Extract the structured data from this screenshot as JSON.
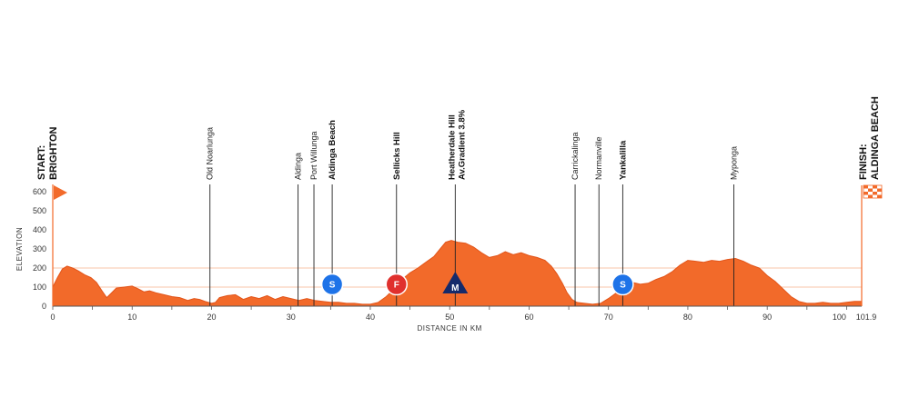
{
  "chart_data": {
    "type": "area",
    "title": "",
    "xlabel": "DISTANCE IN KM",
    "ylabel": "ELEVATION",
    "xlim": [
      0,
      101.9
    ],
    "ylim": [
      0,
      600
    ],
    "x_ticks": [
      "0",
      "10",
      "20",
      "30",
      "40",
      "50",
      "60",
      "70",
      "80",
      "90",
      "100",
      "101.9"
    ],
    "y_ticks": [
      "0",
      "100",
      "200",
      "300",
      "400",
      "500",
      "600"
    ],
    "fill_color": "#f26a2a",
    "line_color": "#e2551a",
    "profile": {
      "x": [
        0,
        0.6,
        1.2,
        1.8,
        2.5,
        3.2,
        4,
        4.8,
        5.5,
        6.2,
        6.8,
        7.4,
        8,
        9,
        10,
        10.8,
        11.5,
        12.2,
        13,
        14,
        15,
        16,
        17,
        17.8,
        18.5,
        19.2,
        20,
        20.5,
        21,
        22,
        23,
        24,
        25,
        26,
        27,
        28,
        29,
        30,
        31,
        32,
        33,
        34,
        35,
        36,
        37,
        38,
        39,
        40,
        41,
        42,
        43,
        44,
        45,
        46,
        47,
        48,
        48.8,
        49.5,
        50.2,
        51,
        52,
        53,
        54,
        55,
        56,
        57,
        58,
        59,
        60,
        61,
        62,
        62.8,
        63.5,
        64.2,
        64.8,
        65.4,
        66,
        67,
        68,
        69,
        70,
        71,
        72,
        73,
        74,
        75,
        76,
        77,
        78,
        79,
        80,
        81,
        82,
        83,
        84,
        85,
        86,
        87,
        88,
        89,
        90,
        91,
        92,
        93,
        94,
        95,
        96,
        97,
        98,
        99,
        100,
        101,
        101.9
      ],
      "y": [
        100,
        150,
        195,
        210,
        200,
        185,
        165,
        150,
        125,
        80,
        45,
        70,
        95,
        100,
        105,
        90,
        75,
        80,
        70,
        60,
        50,
        45,
        30,
        40,
        35,
        25,
        15,
        20,
        45,
        55,
        60,
        35,
        50,
        40,
        55,
        35,
        50,
        40,
        30,
        40,
        30,
        25,
        20,
        20,
        15,
        15,
        10,
        10,
        20,
        50,
        90,
        140,
        175,
        200,
        230,
        260,
        300,
        335,
        345,
        335,
        330,
        310,
        280,
        255,
        265,
        285,
        270,
        280,
        265,
        255,
        240,
        210,
        170,
        120,
        70,
        35,
        20,
        15,
        10,
        15,
        40,
        70,
        95,
        125,
        115,
        120,
        140,
        155,
        180,
        215,
        240,
        235,
        230,
        240,
        235,
        245,
        250,
        235,
        215,
        200,
        160,
        130,
        90,
        50,
        25,
        15,
        15,
        20,
        15,
        15,
        20,
        25,
        25
      ]
    },
    "places": [
      {
        "name": "Old Noarlunga",
        "km": 19.8,
        "bold": false
      },
      {
        "name": "Aldinga",
        "km": 30.9,
        "bold": false
      },
      {
        "name": "Port Willunga",
        "km": 32.9,
        "bold": false
      },
      {
        "name": "Aldinga Beach",
        "km": 35.2,
        "bold": true
      },
      {
        "name": "Sellicks Hill",
        "km": 43.3,
        "bold": true
      },
      {
        "name": "Heatherdale Hill",
        "name2": "Av.Gradient 3.8%",
        "km": 50.7,
        "bold": true
      },
      {
        "name": "Carrickalinga",
        "km": 65.8,
        "bold": false
      },
      {
        "name": "Normanville",
        "km": 68.8,
        "bold": false
      },
      {
        "name": "Yankalilla",
        "km": 71.8,
        "bold": true
      },
      {
        "name": "Myponga",
        "km": 85.8,
        "bold": false
      }
    ],
    "markers": [
      {
        "label": "S",
        "type": "sprint",
        "km": 35.2,
        "color": "#1e73e8"
      },
      {
        "label": "F",
        "type": "feed",
        "km": 43.3,
        "color": "#e0302d"
      },
      {
        "label": "M",
        "type": "mountain",
        "km": 50.7,
        "color": "#152a6b"
      },
      {
        "label": "S",
        "type": "sprint",
        "km": 71.8,
        "color": "#1e73e8"
      }
    ],
    "start": {
      "line1": "START:",
      "line2": "BRIGHTON",
      "km": 0
    },
    "finish": {
      "line1": "FINISH:",
      "line2": "ALDINGA BEACH",
      "km": 101.9
    }
  }
}
